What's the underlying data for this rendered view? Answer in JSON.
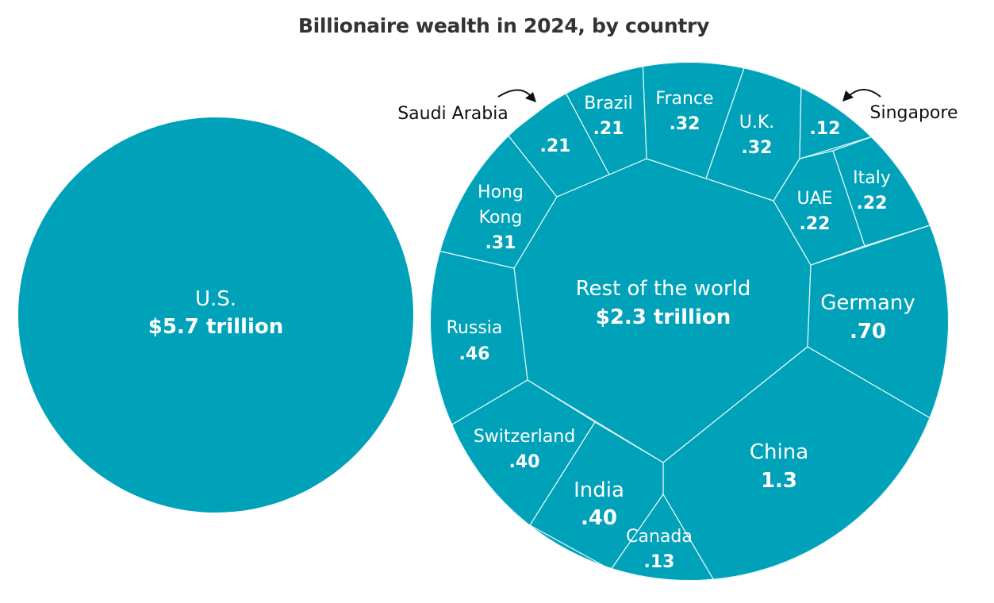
{
  "title": "Billionaire wealth in 2024, by country",
  "colors": {
    "fill": "#00a2b9",
    "border": "#e8f7f9",
    "label": "#ffffff",
    "title": "#333333"
  },
  "chart_data": {
    "type": "voronoi-treemap",
    "title": "Billionaire wealth in 2024, by country",
    "unit": "trillion USD",
    "items": [
      {
        "id": "us",
        "name": "U.S.",
        "value": 5.7,
        "value_label": "$5.7 trillion"
      },
      {
        "id": "rest",
        "name": "Rest of the world",
        "value": 2.3,
        "value_label": "$2.3 trillion"
      },
      {
        "id": "china",
        "name": "China",
        "value": 1.3,
        "value_label": "1.3"
      },
      {
        "id": "germany",
        "name": "Germany",
        "value": 0.7,
        "value_label": ".70"
      },
      {
        "id": "russia",
        "name": "Russia",
        "value": 0.46,
        "value_label": ".46"
      },
      {
        "id": "switzerland",
        "name": "Switzerland",
        "value": 0.4,
        "value_label": ".40"
      },
      {
        "id": "india",
        "name": "India",
        "value": 0.4,
        "value_label": ".40"
      },
      {
        "id": "france",
        "name": "France",
        "value": 0.32,
        "value_label": ".32"
      },
      {
        "id": "uk",
        "name": "U.K.",
        "value": 0.32,
        "value_label": ".32"
      },
      {
        "id": "hongkong",
        "name": "Hong Kong",
        "name_lines": [
          "Hong",
          "Kong"
        ],
        "value": 0.31,
        "value_label": ".31"
      },
      {
        "id": "uae",
        "name": "UAE",
        "value": 0.22,
        "value_label": ".22"
      },
      {
        "id": "italy",
        "name": "Italy",
        "value": 0.22,
        "value_label": ".22"
      },
      {
        "id": "brazil",
        "name": "Brazil",
        "value": 0.21,
        "value_label": ".21"
      },
      {
        "id": "saudi",
        "name": "Saudi Arabia",
        "value": 0.21,
        "value_label": ".21"
      },
      {
        "id": "canada",
        "name": "Canada",
        "value": 0.13,
        "value_label": ".13"
      },
      {
        "id": "singapore",
        "name": "Singapore",
        "value": 0.12,
        "value_label": ".12"
      }
    ]
  }
}
